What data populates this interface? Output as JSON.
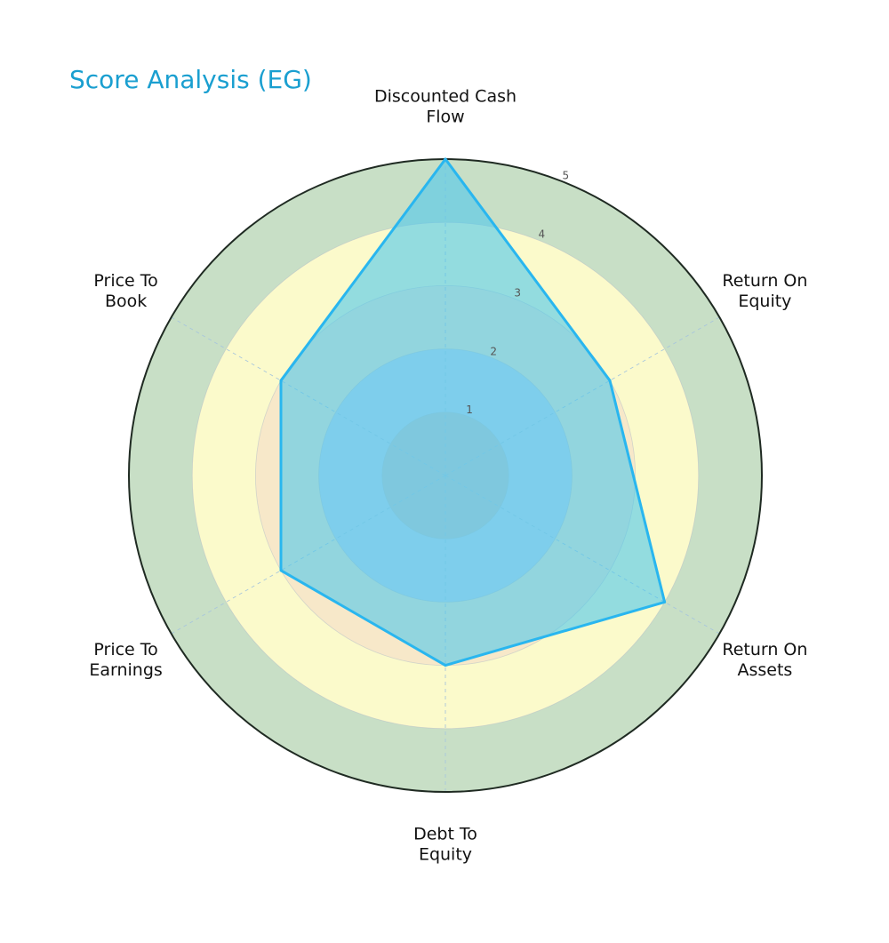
{
  "chart_data": {
    "type": "radar",
    "title": "Score Analysis (EG)",
    "axes": [
      [
        "Discounted Cash",
        "Flow"
      ],
      [
        "Return On",
        "Equity"
      ],
      [
        "Return On",
        "Assets"
      ],
      [
        "Debt To",
        "Equity"
      ],
      [
        "Price To",
        "Earnings"
      ],
      [
        "Price To",
        "Book"
      ]
    ],
    "values": [
      5,
      3,
      4,
      3,
      3,
      3
    ],
    "rlim": [
      0,
      5
    ],
    "rticks": [
      "1",
      "2",
      "3",
      "4",
      "5"
    ],
    "bands": [
      {
        "from": 0,
        "to": 1,
        "color": "#c9c9c9"
      },
      {
        "from": 1,
        "to": 2,
        "color": "#c6d6ec"
      },
      {
        "from": 2,
        "to": 3,
        "color": "#f7e8c9"
      },
      {
        "from": 3,
        "to": 4,
        "color": "#fbfacb"
      },
      {
        "from": 4,
        "to": 5,
        "color": "#c8dfc6"
      }
    ],
    "series_color": "#29b6ef",
    "series_fill": "#4fc8ec"
  }
}
